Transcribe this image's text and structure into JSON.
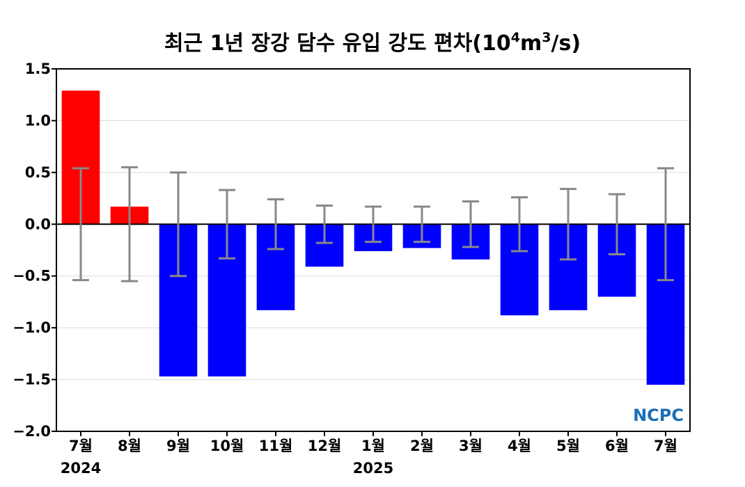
{
  "chart_data": {
    "type": "bar",
    "title": "최근 1년 장강 담수 유입 강도 편차",
    "title_unit_base": "10",
    "title_unit_exp": "4",
    "title_unit_mid": "m",
    "title_unit_exp2": "3",
    "title_unit_tail": "/s)",
    "title_open_paren": "(",
    "categories": [
      "7월",
      "8월",
      "9월",
      "10월",
      "11월",
      "12월",
      "1월",
      "2월",
      "3월",
      "4월",
      "5월",
      "6월",
      "7월"
    ],
    "year_labels": [
      {
        "index": 0,
        "text": "2024"
      },
      {
        "index": 6,
        "text": "2025"
      }
    ],
    "values": [
      1.29,
      0.17,
      -1.47,
      -1.47,
      -0.83,
      -0.41,
      -0.26,
      -0.23,
      -0.34,
      -0.88,
      -0.83,
      -0.7,
      -1.55
    ],
    "error_bars": [
      0.54,
      0.55,
      0.5,
      0.33,
      0.24,
      0.18,
      0.17,
      0.17,
      0.22,
      0.26,
      0.34,
      0.29,
      0.54
    ],
    "ylim": [
      -2.0,
      1.5
    ],
    "yticks": [
      1.5,
      1.0,
      0.5,
      0.0,
      -0.5,
      -1.0,
      -1.5,
      -2.0
    ],
    "ytick_labels": [
      "1.5",
      "1.0",
      "0.5",
      "0.0",
      "−0.5",
      "−1.0",
      "−1.5",
      "−2.0"
    ],
    "grid": true,
    "colors": {
      "positive": "#ff0000",
      "negative": "#0000ff",
      "error_bar": "#888888",
      "grid": "#d9d9d9"
    }
  },
  "logo": {
    "text": "NCPC",
    "color": "#1a6fb5"
  }
}
